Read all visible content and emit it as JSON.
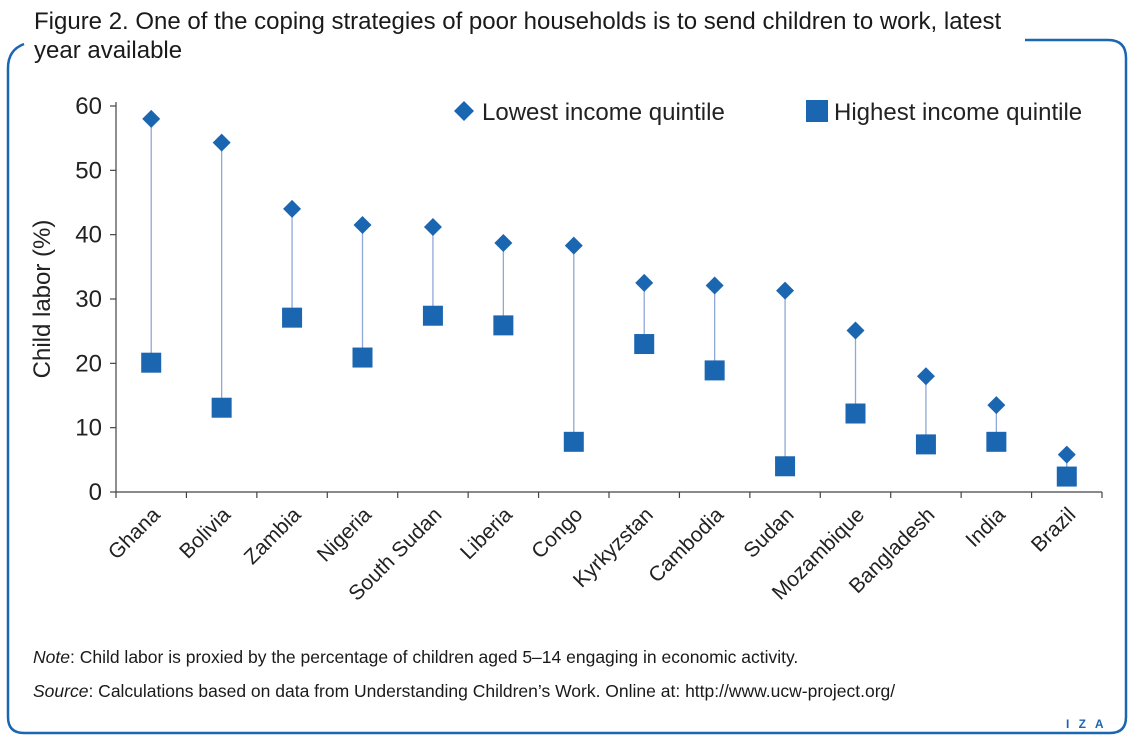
{
  "figure": {
    "title": "Figure 2. One of the coping strategies of poor households is to send children to work, latest year available",
    "note_label": "Note",
    "note_text": ": Child labor is proxied by the percentage of children aged 5–14 engaging in economic activity.",
    "source_label": "Source",
    "source_text": ": Calculations based on data from Understanding Children’s Work. Online at: http://www.ucw-project.org/",
    "logo_text": "I Z A"
  },
  "colors": {
    "accent": "#1b66b1",
    "connector": "#8fa8d8",
    "frame": "#1b66b1"
  },
  "chart_data": {
    "type": "scatter",
    "ylabel": "Child labor (%)",
    "xlabel": "",
    "ylim": [
      0,
      60
    ],
    "yticks": [
      0,
      10,
      20,
      30,
      40,
      50,
      60
    ],
    "legend_position": "top-right",
    "grid": false,
    "categories": [
      "Ghana",
      "Bolivia",
      "Zambia",
      "Nigeria",
      "South Sudan",
      "Liberia",
      "Congo",
      "Kyrkyzstan",
      "Cambodia",
      "Sudan",
      "Mozambique",
      "Bangladesh",
      "India",
      "Brazil"
    ],
    "series": [
      {
        "name": "Lowest income quintile",
        "marker": "diamond",
        "values": [
          58,
          54.3,
          44,
          41.5,
          41.2,
          38.7,
          38.3,
          32.5,
          32.1,
          31.3,
          25.1,
          18,
          13.5,
          5.8
        ]
      },
      {
        "name": "Highest income quintile",
        "marker": "square",
        "values": [
          20.1,
          13.1,
          27.1,
          20.9,
          27.4,
          25.9,
          7.8,
          23,
          18.9,
          4,
          12.2,
          7.4,
          7.8,
          2.4
        ]
      }
    ]
  }
}
